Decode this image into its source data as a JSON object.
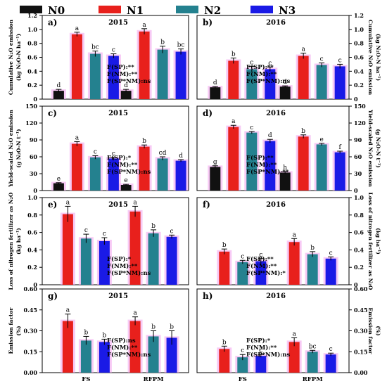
{
  "legend": [
    {
      "label": "N0",
      "color": "#111111"
    },
    {
      "label": "N1",
      "color": "#e8201c"
    },
    {
      "label": "N2",
      "color": "#24818f"
    },
    {
      "label": "N3",
      "color": "#1a1ae6"
    }
  ],
  "colors": {
    "bar_glow": "#f2a6ee"
  },
  "chart_data": [
    {
      "type": "bar",
      "id": "a",
      "panel_label": "a)",
      "year_label": "2015",
      "side": "left",
      "categories": [
        "FS",
        "RFPM"
      ],
      "ylabel": "Cumulative N₂O emission",
      "ylabel_unit": "(kg N₂O-N ha⁻¹)",
      "ylim": [
        0,
        1.2
      ],
      "yticks": [
        0,
        0.2,
        0.4,
        0.6,
        0.8,
        1.0,
        1.2
      ],
      "stats": [
        "F(SP):**",
        "F(NM):**",
        "F(SP*NM):ns"
      ],
      "series": [
        {
          "name": "N0",
          "values": [
            0.12,
            0.12
          ],
          "errors": [
            0.02,
            0.02
          ],
          "letters": [
            "d",
            "d"
          ]
        },
        {
          "name": "N1",
          "values": [
            0.93,
            0.97
          ],
          "errors": [
            0.03,
            0.04
          ],
          "letters": [
            "a",
            "a"
          ]
        },
        {
          "name": "N2",
          "values": [
            0.65,
            0.71
          ],
          "errors": [
            0.04,
            0.05
          ],
          "letters": [
            "bc",
            "b"
          ]
        },
        {
          "name": "N3",
          "values": [
            0.62,
            0.68
          ],
          "errors": [
            0.03,
            0.04
          ],
          "letters": [
            "c",
            "bc"
          ]
        }
      ]
    },
    {
      "type": "bar",
      "id": "b",
      "panel_label": "b)",
      "year_label": "2016",
      "side": "right",
      "categories": [
        "FS",
        "RFPM"
      ],
      "ylabel": "Cumulative N₂O emission",
      "ylabel_unit": "(kg N₂O-N ha⁻¹)",
      "ylim": [
        0,
        1.2
      ],
      "yticks": [
        0,
        0.2,
        0.4,
        0.6,
        0.8,
        1.0,
        1.2
      ],
      "stats": [
        "F(SP):**",
        "F(NM):**",
        "F(SP*NM):ns"
      ],
      "series": [
        {
          "name": "N0",
          "values": [
            0.17,
            0.18
          ],
          "errors": [
            0.01,
            0.01
          ],
          "letters": [
            "d",
            "d"
          ]
        },
        {
          "name": "N1",
          "values": [
            0.55,
            0.62
          ],
          "errors": [
            0.04,
            0.04
          ],
          "letters": [
            "b",
            "a"
          ]
        },
        {
          "name": "N2",
          "values": [
            0.43,
            0.49
          ],
          "errors": [
            0.04,
            0.03
          ],
          "letters": [
            "c",
            "c"
          ]
        },
        {
          "name": "N3",
          "values": [
            0.43,
            0.47
          ],
          "errors": [
            0.03,
            0.03
          ],
          "letters": [
            "c",
            "c"
          ]
        }
      ]
    },
    {
      "type": "bar",
      "id": "c",
      "panel_label": "c)",
      "year_label": "2015",
      "side": "left",
      "categories": [
        "FS",
        "RFPM"
      ],
      "ylabel": "Yield-scaled N₂O emission",
      "ylabel_unit": "(g N₂O-N t⁻¹)",
      "ylim": [
        0,
        150
      ],
      "yticks": [
        0,
        30,
        60,
        90,
        120,
        150
      ],
      "stats": [
        "F(SP):*",
        "F(NM):**",
        "F(SP*NM):ns"
      ],
      "series": [
        {
          "name": "N0",
          "values": [
            13,
            10
          ],
          "errors": [
            1,
            1
          ],
          "letters": [
            "e",
            "e"
          ]
        },
        {
          "name": "N1",
          "values": [
            83,
            78
          ],
          "errors": [
            4,
            3
          ],
          "letters": [
            "a",
            "b"
          ]
        },
        {
          "name": "N2",
          "values": [
            59,
            57
          ],
          "errors": [
            3,
            3
          ],
          "letters": [
            "c",
            "cd"
          ]
        },
        {
          "name": "N3",
          "values": [
            57,
            53
          ],
          "errors": [
            2,
            2
          ],
          "letters": [
            "c",
            "d"
          ]
        }
      ]
    },
    {
      "type": "bar",
      "id": "d",
      "panel_label": "d)",
      "year_label": "2016",
      "side": "right",
      "categories": [
        "FS",
        "RFPM"
      ],
      "ylabel": "Yield-scaled N₂O emission",
      "ylabel_unit": "(g N₂O-N t⁻¹)",
      "ylim": [
        0,
        150
      ],
      "yticks": [
        0,
        30,
        60,
        90,
        120,
        150
      ],
      "stats": [
        "F(SP):**",
        "F(NM):**",
        "F(SP*NM):**"
      ],
      "series": [
        {
          "name": "N0",
          "values": [
            42,
            32
          ],
          "errors": [
            2,
            2
          ],
          "letters": [
            "g",
            "h"
          ]
        },
        {
          "name": "N1",
          "values": [
            113,
            96
          ],
          "errors": [
            3,
            3
          ],
          "letters": [
            "a",
            "b"
          ]
        },
        {
          "name": "N2",
          "values": [
            103,
            82
          ],
          "errors": [
            2,
            2
          ],
          "letters": [
            "c",
            "e"
          ]
        },
        {
          "name": "N3",
          "values": [
            88,
            68
          ],
          "errors": [
            3,
            2
          ],
          "letters": [
            "d",
            "f"
          ]
        }
      ]
    },
    {
      "type": "bar",
      "id": "e",
      "panel_label": "e)",
      "year_label": "2015",
      "side": "left",
      "categories": [
        "FS",
        "RFPM"
      ],
      "ylabel": "Loss of nitrogen fertilizer as N₂O",
      "ylabel_unit": "(kg ha⁻¹)",
      "ylim": [
        0,
        1.0
      ],
      "yticks": [
        0,
        0.2,
        0.4,
        0.6,
        0.8,
        1.0
      ],
      "stats": [
        "F(SP):*",
        "F(NM):**",
        "F(SP*NM):ns"
      ],
      "series": [
        {
          "name": "N1",
          "values": [
            0.81,
            0.84
          ],
          "errors": [
            0.09,
            0.06
          ],
          "letters": [
            "a",
            "a"
          ]
        },
        {
          "name": "N2",
          "values": [
            0.53,
            0.59
          ],
          "errors": [
            0.05,
            0.04
          ],
          "letters": [
            "c",
            "b"
          ]
        },
        {
          "name": "N3",
          "values": [
            0.5,
            0.55
          ],
          "errors": [
            0.04,
            0.02
          ],
          "letters": [
            "c",
            "c"
          ]
        }
      ]
    },
    {
      "type": "bar",
      "id": "f",
      "panel_label": "f)",
      "year_label": "2016",
      "side": "right",
      "categories": [
        "FS",
        "RFPM"
      ],
      "ylabel": "Loss of nitrogen fertilizer as N₂O",
      "ylabel_unit": "(kg ha⁻¹)",
      "ylim": [
        0,
        1.0
      ],
      "yticks": [
        0,
        0.2,
        0.4,
        0.6,
        0.8,
        1.0
      ],
      "stats": [
        "F(SP):**",
        "F(NM):**",
        "F(SP*NM):*"
      ],
      "series": [
        {
          "name": "N1",
          "values": [
            0.38,
            0.49
          ],
          "errors": [
            0.03,
            0.04
          ],
          "letters": [
            "b",
            "a"
          ]
        },
        {
          "name": "N2",
          "values": [
            0.26,
            0.35
          ],
          "errors": [
            0.02,
            0.03
          ],
          "letters": [
            "c",
            "b"
          ]
        },
        {
          "name": "N3",
          "values": [
            0.27,
            0.3
          ],
          "errors": [
            0.03,
            0.02
          ],
          "letters": [
            "c",
            "c"
          ]
        }
      ]
    },
    {
      "type": "bar",
      "id": "g",
      "panel_label": "g)",
      "year_label": "2015",
      "side": "left",
      "categories": [
        "FS",
        "RFPM"
      ],
      "ylabel": "Emission factor",
      "ylabel_unit": "(%)",
      "ylim": [
        0,
        0.6
      ],
      "yticks": [
        0.0,
        0.15,
        0.3,
        0.45,
        0.6
      ],
      "stats": [
        "F(SP):ns",
        "F(NM):**",
        "F(SP*NM):ns"
      ],
      "series": [
        {
          "name": "N1",
          "values": [
            0.37,
            0.37
          ],
          "errors": [
            0.05,
            0.03
          ],
          "letters": [
            "a",
            "a"
          ]
        },
        {
          "name": "N2",
          "values": [
            0.23,
            0.26
          ],
          "errors": [
            0.03,
            0.04
          ],
          "letters": [
            "b",
            "b"
          ]
        },
        {
          "name": "N3",
          "values": [
            0.22,
            0.25
          ],
          "errors": [
            0.02,
            0.05
          ],
          "letters": [
            "b",
            "b"
          ]
        }
      ]
    },
    {
      "type": "bar",
      "id": "h",
      "panel_label": "h)",
      "year_label": "2016",
      "side": "right",
      "categories": [
        "FS",
        "RFPM"
      ],
      "ylabel": "Emission factor",
      "ylabel_unit": "(%)",
      "ylim": [
        0,
        0.6
      ],
      "yticks": [
        0.0,
        0.15,
        0.3,
        0.45,
        0.6
      ],
      "stats": [
        "F(SP):*",
        "F(NM):**",
        "F(SP*NM):ns"
      ],
      "series": [
        {
          "name": "N1",
          "values": [
            0.17,
            0.22
          ],
          "errors": [
            0.02,
            0.03
          ],
          "letters": [
            "b",
            "a"
          ]
        },
        {
          "name": "N2",
          "values": [
            0.11,
            0.15
          ],
          "errors": [
            0.02,
            0.01
          ],
          "letters": [
            "c",
            "bc"
          ]
        },
        {
          "name": "N3",
          "values": [
            0.12,
            0.13
          ],
          "errors": [
            0.01,
            0.01
          ],
          "letters": [
            "c",
            "c"
          ]
        }
      ]
    }
  ]
}
